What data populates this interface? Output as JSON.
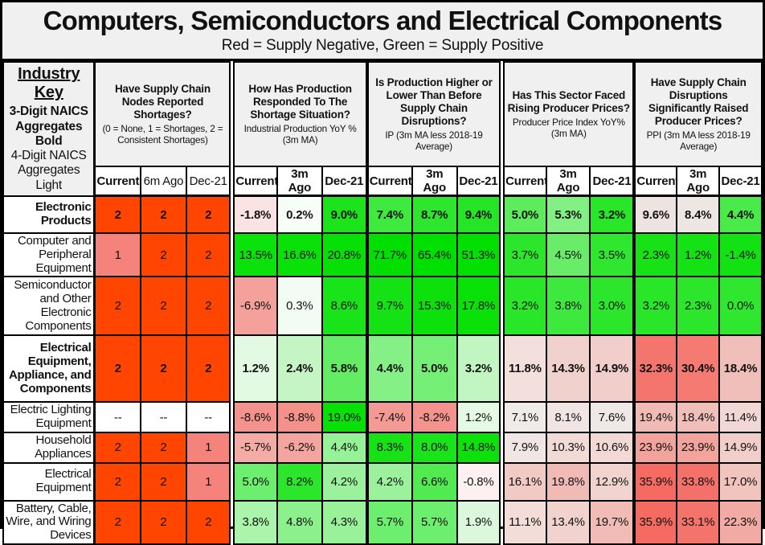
{
  "title": "Computers, Semiconductors and Electrical Components",
  "subtitle": "Red = Supply Negative, Green = Supply Positive",
  "industry_key": {
    "heading": "Industry Key",
    "line2": "3-Digit NAICS Aggregates Bold",
    "line3": "4-Digit NAICS Aggregates Light"
  },
  "chart_data": {
    "type": "table",
    "legend": {
      "red": "Supply Negative",
      "green": "Supply Positive"
    },
    "status_colors": {
      "consistent_shortages": "#FF4500",
      "shortages": "#F5827B",
      "none_reported": "#FFFFFF",
      "positive_strong": "#00E000",
      "negative_strong": "#F5665D"
    },
    "groups": [
      {
        "question": "Have Supply Chain Nodes Reported Shortages?",
        "detail": "(0 = None, 1 = Shortages, 2 = Consistent Shortages)",
        "columns": [
          {
            "label": "Current",
            "bold": true
          },
          {
            "label": "6m Ago",
            "bold": false
          },
          {
            "label": "Dec-21",
            "bold": false
          }
        ]
      },
      {
        "question": "How Has Production Responded To The Shortage Situation?",
        "detail": "Industrial Production YoY % (3m MA)",
        "columns": [
          {
            "label": "Current",
            "bold": true
          },
          {
            "label": "3m Ago",
            "bold": true
          },
          {
            "label": "Dec-21",
            "bold": true
          }
        ]
      },
      {
        "question": "Is Production Higher or Lower Than Before Supply Chain Disruptions?",
        "detail": "IP (3m MA less 2018-19 Average)",
        "columns": [
          {
            "label": "Current",
            "bold": true
          },
          {
            "label": "3m Ago",
            "bold": true
          },
          {
            "label": "Dec-21",
            "bold": true
          }
        ]
      },
      {
        "question": "Has This Sector Faced Rising Producer Prices?",
        "detail": "Producer Price Index YoY% (3m MA)",
        "columns": [
          {
            "label": "Current",
            "bold": true
          },
          {
            "label": "3m Ago",
            "bold": true
          },
          {
            "label": "Dec-21",
            "bold": true
          }
        ]
      },
      {
        "question": "Have Supply Chain Disruptions Significantly Raised Producer Prices?",
        "detail": "PPI (3m MA less 2018-19 Average)",
        "columns": [
          {
            "label": "Current",
            "bold": true
          },
          {
            "label": "3m Ago",
            "bold": true
          },
          {
            "label": "Dec-21",
            "bold": true
          }
        ]
      }
    ],
    "rows": [
      {
        "label": "Electronic Products",
        "bold": true,
        "cells": [
          {
            "v": "2",
            "c": "#FF4500"
          },
          {
            "v": "2",
            "c": "#FF4500"
          },
          {
            "v": "2",
            "c": "#FF4500"
          },
          {
            "v": "-1.8%",
            "c": "#FAE4E3"
          },
          {
            "v": "0.2%",
            "c": "#F7FDF7"
          },
          {
            "v": "9.0%",
            "c": "#1DE31D"
          },
          {
            "v": "7.4%",
            "c": "#3FE93F"
          },
          {
            "v": "8.7%",
            "c": "#2EE62E"
          },
          {
            "v": "9.4%",
            "c": "#26E526"
          },
          {
            "v": "5.0%",
            "c": "#5CEC5C"
          },
          {
            "v": "5.3%",
            "c": "#82F082"
          },
          {
            "v": "3.2%",
            "c": "#29E629"
          },
          {
            "v": "9.6%",
            "c": "#EDE4E1"
          },
          {
            "v": "8.4%",
            "c": "#EDE6E3"
          },
          {
            "v": "4.4%",
            "c": "#4BEA4B"
          }
        ]
      },
      {
        "label": "Computer and Peripheral Equipment",
        "bold": false,
        "cells": [
          {
            "v": "1",
            "c": "#F5827B"
          },
          {
            "v": "2",
            "c": "#FF4500"
          },
          {
            "v": "2",
            "c": "#FF4500"
          },
          {
            "v": "13.5%",
            "c": "#0BE10B"
          },
          {
            "v": "16.6%",
            "c": "#09E109"
          },
          {
            "v": "20.8%",
            "c": "#07E007"
          },
          {
            "v": "71.7%",
            "c": "#00DF00"
          },
          {
            "v": "65.4%",
            "c": "#00E000"
          },
          {
            "v": "51.3%",
            "c": "#02E002"
          },
          {
            "v": "3.7%",
            "c": "#2CE62C"
          },
          {
            "v": "4.5%",
            "c": "#69ED69"
          },
          {
            "v": "3.5%",
            "c": "#2FE72F"
          },
          {
            "v": "2.3%",
            "c": "#16E216"
          },
          {
            "v": "1.2%",
            "c": "#14E214"
          },
          {
            "v": "-1.4%",
            "c": "#12E212"
          }
        ]
      },
      {
        "label": "Semiconductor and Other Electronic Components",
        "bold": false,
        "cells": [
          {
            "v": "2",
            "c": "#FF4500"
          },
          {
            "v": "2",
            "c": "#FF4500"
          },
          {
            "v": "2",
            "c": "#FF4500"
          },
          {
            "v": "-6.9%",
            "c": "#F5A19B"
          },
          {
            "v": "0.3%",
            "c": "#F3FCF3"
          },
          {
            "v": "8.6%",
            "c": "#19E319"
          },
          {
            "v": "9.7%",
            "c": "#14E214"
          },
          {
            "v": "15.3%",
            "c": "#0CE10C"
          },
          {
            "v": "17.8%",
            "c": "#09E109"
          },
          {
            "v": "3.2%",
            "c": "#29E629"
          },
          {
            "v": "3.8%",
            "c": "#3DE93D"
          },
          {
            "v": "3.0%",
            "c": "#2BE62B"
          },
          {
            "v": "3.2%",
            "c": "#29E629"
          },
          {
            "v": "2.3%",
            "c": "#2CE62C"
          },
          {
            "v": "0.0%",
            "c": "#30E730"
          }
        ]
      },
      {
        "label": "Electrical Equipment, Appliance, and Components",
        "bold": true,
        "cells": [
          {
            "v": "2",
            "c": "#FF4500"
          },
          {
            "v": "2",
            "c": "#FF4500"
          },
          {
            "v": "2",
            "c": "#FF4500"
          },
          {
            "v": "1.2%",
            "c": "#E2F9E2"
          },
          {
            "v": "2.4%",
            "c": "#C5F5C5"
          },
          {
            "v": "5.8%",
            "c": "#64ED64"
          },
          {
            "v": "4.4%",
            "c": "#85F085"
          },
          {
            "v": "5.0%",
            "c": "#76EF76"
          },
          {
            "v": "3.2%",
            "c": "#C1F5C1"
          },
          {
            "v": "11.8%",
            "c": "#F3DFDC"
          },
          {
            "v": "14.3%",
            "c": "#F1D1CC"
          },
          {
            "v": "14.9%",
            "c": "#F1CEC9"
          },
          {
            "v": "32.3%",
            "c": "#F4756D"
          },
          {
            "v": "30.4%",
            "c": "#F47A72"
          },
          {
            "v": "18.4%",
            "c": "#F1BFB9"
          }
        ]
      },
      {
        "label": "Electric Lighting Equipment",
        "bold": false,
        "cells": [
          {
            "v": "--",
            "c": "#FFFFFF"
          },
          {
            "v": "--",
            "c": "#FFFFFF"
          },
          {
            "v": "--",
            "c": "#FFFFFF"
          },
          {
            "v": "-8.6%",
            "c": "#F4938D"
          },
          {
            "v": "-8.8%",
            "c": "#F4918B"
          },
          {
            "v": "19.0%",
            "c": "#08E008"
          },
          {
            "v": "-7.4%",
            "c": "#F49A94"
          },
          {
            "v": "-8.2%",
            "c": "#F4938D"
          },
          {
            "v": "1.2%",
            "c": "#E5FAE5"
          },
          {
            "v": "7.1%",
            "c": "#EFEBE9"
          },
          {
            "v": "8.1%",
            "c": "#F0E5E2"
          },
          {
            "v": "7.6%",
            "c": "#EFE8E6"
          },
          {
            "v": "19.4%",
            "c": "#F1BBB5"
          },
          {
            "v": "18.4%",
            "c": "#F1BFB9"
          },
          {
            "v": "11.4%",
            "c": "#F2D8D4"
          }
        ]
      },
      {
        "label": "Household Appliances",
        "bold": false,
        "cells": [
          {
            "v": "2",
            "c": "#FF4500"
          },
          {
            "v": "2",
            "c": "#FF4500"
          },
          {
            "v": "1",
            "c": "#F5827B"
          },
          {
            "v": "-5.7%",
            "c": "#F4ABA5"
          },
          {
            "v": "-6.2%",
            "c": "#F4A59F"
          },
          {
            "v": "4.4%",
            "c": "#96F296"
          },
          {
            "v": "8.3%",
            "c": "#16E216"
          },
          {
            "v": "8.0%",
            "c": "#19E319"
          },
          {
            "v": "14.8%",
            "c": "#0CE10C"
          },
          {
            "v": "7.9%",
            "c": "#F0E7E5"
          },
          {
            "v": "10.3%",
            "c": "#F2DBD7"
          },
          {
            "v": "10.6%",
            "c": "#F2D9D5"
          },
          {
            "v": "23.9%",
            "c": "#F2A39C"
          },
          {
            "v": "23.9%",
            "c": "#F2A39C"
          },
          {
            "v": "14.9%",
            "c": "#F1CEC9"
          }
        ]
      },
      {
        "label": "Electrical Equipment",
        "bold": false,
        "cells": [
          {
            "v": "2",
            "c": "#FF4500"
          },
          {
            "v": "2",
            "c": "#FF4500"
          },
          {
            "v": "1",
            "c": "#F5827B"
          },
          {
            "v": "5.0%",
            "c": "#6EEE6E"
          },
          {
            "v": "8.2%",
            "c": "#2BE62B"
          },
          {
            "v": "4.2%",
            "c": "#9CF29C"
          },
          {
            "v": "4.2%",
            "c": "#9CF29C"
          },
          {
            "v": "6.6%",
            "c": "#51EB51"
          },
          {
            "v": "-0.8%",
            "c": "#FCF1F0"
          },
          {
            "v": "16.1%",
            "c": "#F1CAC5"
          },
          {
            "v": "19.8%",
            "c": "#F1BBB5"
          },
          {
            "v": "12.9%",
            "c": "#F2D4CF"
          },
          {
            "v": "35.9%",
            "c": "#F56A61"
          },
          {
            "v": "33.8%",
            "c": "#F47169"
          },
          {
            "v": "17.0%",
            "c": "#F1C4BE"
          }
        ]
      },
      {
        "label": "Battery, Cable, Wire, and Wiring Devices",
        "bold": false,
        "cells": [
          {
            "v": "2",
            "c": "#FF4500"
          },
          {
            "v": "2",
            "c": "#FF4500"
          },
          {
            "v": "2",
            "c": "#FF4500"
          },
          {
            "v": "3.8%",
            "c": "#ABF4AB"
          },
          {
            "v": "4.8%",
            "c": "#8CF18C"
          },
          {
            "v": "4.3%",
            "c": "#99F299"
          },
          {
            "v": "5.7%",
            "c": "#6EEE6E"
          },
          {
            "v": "5.7%",
            "c": "#6EEE6E"
          },
          {
            "v": "1.9%",
            "c": "#DCF8DC"
          },
          {
            "v": "11.1%",
            "c": "#F2DDD9"
          },
          {
            "v": "13.4%",
            "c": "#F1D2CD"
          },
          {
            "v": "19.7%",
            "c": "#F1BCB6"
          },
          {
            "v": "35.9%",
            "c": "#F56A61"
          },
          {
            "v": "33.1%",
            "c": "#F4746C"
          },
          {
            "v": "22.3%",
            "c": "#F2ABA4"
          }
        ]
      }
    ]
  }
}
